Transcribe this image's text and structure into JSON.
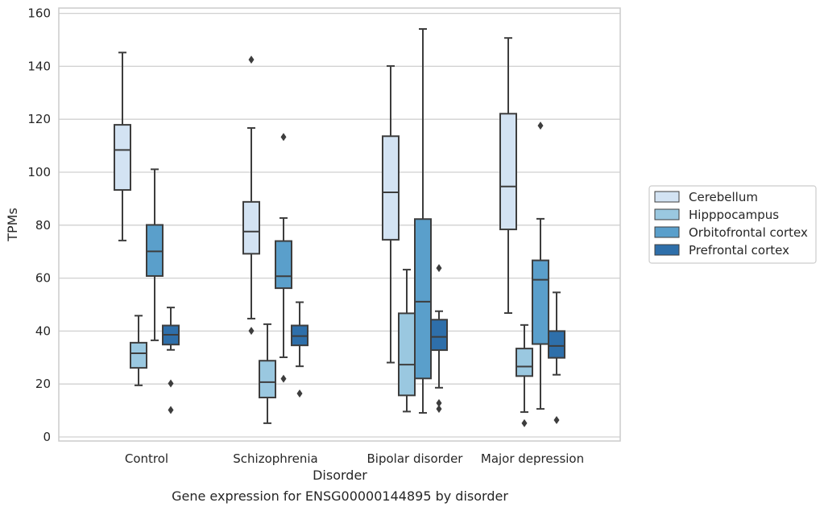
{
  "chart_data": {
    "type": "box",
    "xlabel": "Disorder",
    "ylabel": "TPMs",
    "caption": "Gene expression for ENSG00000144895 by disorder",
    "ylim": [
      -2,
      161
    ],
    "yticks": [
      0,
      20,
      40,
      60,
      80,
      100,
      120,
      140,
      160
    ],
    "grid": "horizontal",
    "legend_position": "right",
    "categories": [
      "Control",
      "Schizophrenia",
      "Bipolar disorder",
      "Major depression"
    ],
    "series": [
      {
        "name": "Cerebellum",
        "color": "#d3e3f3",
        "boxes": [
          {
            "whisker_low": 74.2,
            "q1": 93.3,
            "median": 108.4,
            "q3": 117.9,
            "whisker_high": 145.2,
            "outliers": []
          },
          {
            "whisker_low": 44.7,
            "q1": 69.2,
            "median": 77.6,
            "q3": 88.8,
            "whisker_high": 116.7,
            "outliers": [
              40.1,
              142.5
            ]
          },
          {
            "whisker_low": 28.1,
            "q1": 74.5,
            "median": 92.4,
            "q3": 113.6,
            "whisker_high": 140.1,
            "outliers": []
          },
          {
            "whisker_low": 46.8,
            "q1": 78.4,
            "median": 94.6,
            "q3": 122.1,
            "whisker_high": 150.7,
            "outliers": []
          }
        ]
      },
      {
        "name": "Hipppocampus",
        "color": "#9ac8e0",
        "boxes": [
          {
            "whisker_low": 19.5,
            "q1": 26.1,
            "median": 31.6,
            "q3": 35.6,
            "whisker_high": 45.8,
            "outliers": []
          },
          {
            "whisker_low": 5.2,
            "q1": 14.9,
            "median": 20.7,
            "q3": 28.8,
            "whisker_high": 42.6,
            "outliers": []
          },
          {
            "whisker_low": 9.6,
            "q1": 15.7,
            "median": 27.3,
            "q3": 46.7,
            "whisker_high": 63.2,
            "outliers": []
          },
          {
            "whisker_low": 9.4,
            "q1": 23.0,
            "median": 26.6,
            "q3": 33.4,
            "whisker_high": 42.3,
            "outliers": [
              5.2
            ]
          }
        ]
      },
      {
        "name": "Orbitofrontal cortex",
        "color": "#5a9fcb",
        "boxes": [
          {
            "whisker_low": 36.5,
            "q1": 60.8,
            "median": 70.1,
            "q3": 80.1,
            "whisker_high": 101.1,
            "outliers": []
          },
          {
            "whisker_low": 30.1,
            "q1": 56.2,
            "median": 60.7,
            "q3": 74.0,
            "whisker_high": 82.7,
            "outliers": [
              22.0,
              113.3
            ]
          },
          {
            "whisker_low": 9.1,
            "q1": 22.1,
            "median": 51.1,
            "q3": 82.3,
            "whisker_high": 154.1,
            "outliers": []
          },
          {
            "whisker_low": 10.6,
            "q1": 35.1,
            "median": 59.4,
            "q3": 66.7,
            "whisker_high": 82.4,
            "outliers": [
              117.6
            ]
          }
        ]
      },
      {
        "name": "Prefrontal cortex",
        "color": "#2e6faa",
        "boxes": [
          {
            "whisker_low": 32.9,
            "q1": 34.9,
            "median": 38.6,
            "q3": 42.1,
            "whisker_high": 48.9,
            "outliers": [
              20.2,
              10.2
            ]
          },
          {
            "whisker_low": 26.7,
            "q1": 34.6,
            "median": 38.1,
            "q3": 42.1,
            "whisker_high": 50.9,
            "outliers": [
              16.4
            ]
          },
          {
            "whisker_low": 18.6,
            "q1": 32.8,
            "median": 37.8,
            "q3": 44.3,
            "whisker_high": 47.5,
            "outliers": [
              63.8,
              12.8,
              10.6
            ]
          },
          {
            "whisker_low": 23.5,
            "q1": 29.9,
            "median": 34.4,
            "q3": 40.0,
            "whisker_high": 54.6,
            "outliers": [
              6.4
            ]
          }
        ]
      }
    ]
  }
}
